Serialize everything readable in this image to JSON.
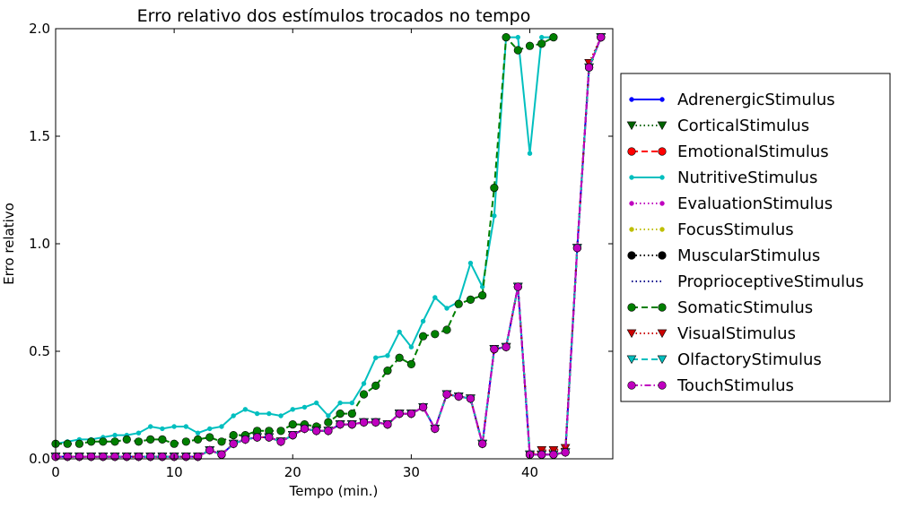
{
  "chart_data": {
    "type": "line",
    "title": "Erro relativo dos estímulos trocados no tempo",
    "xlabel": "Tempo (min.)",
    "ylabel": "Erro relativo",
    "xlim": [
      0,
      47
    ],
    "ylim": [
      0,
      2.0
    ],
    "xticks": [
      0,
      10,
      20,
      30,
      40
    ],
    "yticks": [
      0.0,
      0.5,
      1.0,
      1.5,
      2.0
    ],
    "xtick_labels": [
      "0",
      "10",
      "20",
      "30",
      "40"
    ],
    "ytick_labels": [
      "0.0",
      "0.5",
      "1.0",
      "1.5",
      "2.0"
    ],
    "grid": false,
    "legend_position": "right, outside plot",
    "x": [
      0,
      1,
      2,
      3,
      4,
      5,
      6,
      7,
      8,
      9,
      10,
      11,
      12,
      13,
      14,
      15,
      16,
      17,
      18,
      19,
      20,
      21,
      22,
      23,
      24,
      25,
      26,
      27,
      28,
      29,
      30,
      31,
      32,
      33,
      34,
      35,
      36,
      37,
      38,
      39,
      40,
      41,
      42,
      43,
      44,
      45,
      46
    ],
    "series": [
      {
        "name": "AdrenergicStimulus",
        "color": "#0000ff",
        "line": "solid",
        "marker": "dot",
        "values": [
          0.01,
          0.01,
          0.01,
          0.01,
          0.01,
          0.01,
          0.01,
          0.01,
          0.01,
          0.01,
          0.01,
          0.01,
          0.01,
          0.04,
          0.02,
          0.07,
          0.09,
          0.1,
          0.1,
          0.08,
          0.11,
          0.14,
          0.13,
          0.13,
          0.16,
          0.16,
          0.17,
          0.17,
          0.16,
          0.21,
          0.21,
          0.24,
          0.14,
          0.3,
          0.29,
          0.28,
          0.07,
          0.51,
          0.52,
          0.8,
          0.02,
          0.02,
          0.02,
          0.03,
          0.98,
          1.82,
          1.96
        ]
      },
      {
        "name": "CorticalStimulus",
        "color": "#006400",
        "line": "dotted",
        "marker": "triangle-down",
        "values": [
          0.01,
          0.01,
          0.01,
          0.01,
          0.01,
          0.01,
          0.01,
          0.01,
          0.01,
          0.01,
          0.01,
          0.01,
          0.01,
          0.04,
          0.02,
          0.07,
          0.09,
          0.1,
          0.1,
          0.08,
          0.11,
          0.14,
          0.13,
          0.13,
          0.16,
          0.16,
          0.17,
          0.17,
          0.16,
          0.21,
          0.21,
          0.24,
          0.14,
          0.3,
          0.29,
          0.28,
          0.07,
          0.51,
          0.52,
          0.8,
          0.02,
          0.02,
          0.02,
          0.03,
          0.98,
          1.82,
          1.96
        ]
      },
      {
        "name": "EmotionalStimulus",
        "color": "#ff0000",
        "line": "dashed",
        "marker": "circle",
        "values": [
          0.01,
          0.01,
          0.01,
          0.01,
          0.01,
          0.01,
          0.01,
          0.01,
          0.01,
          0.01,
          0.01,
          0.01,
          0.01,
          0.04,
          0.02,
          0.07,
          0.09,
          0.1,
          0.1,
          0.08,
          0.11,
          0.14,
          0.13,
          0.13,
          0.16,
          0.16,
          0.17,
          0.17,
          0.16,
          0.21,
          0.21,
          0.24,
          0.14,
          0.3,
          0.29,
          0.28,
          0.07,
          0.51,
          0.52,
          0.8,
          0.02,
          0.02,
          0.02,
          0.03,
          0.98,
          1.82,
          1.96
        ]
      },
      {
        "name": "NutritiveStimulus",
        "color": "#00bfbf",
        "line": "solid",
        "marker": "dot",
        "values": [
          0.07,
          0.08,
          0.09,
          0.09,
          0.1,
          0.11,
          0.11,
          0.12,
          0.15,
          0.14,
          0.15,
          0.15,
          0.12,
          0.14,
          0.15,
          0.2,
          0.23,
          0.21,
          0.21,
          0.2,
          0.23,
          0.24,
          0.26,
          0.2,
          0.26,
          0.26,
          0.35,
          0.47,
          0.48,
          0.59,
          0.52,
          0.64,
          0.75,
          0.7,
          0.73,
          0.91,
          0.8,
          1.13,
          1.96,
          1.96,
          1.42,
          1.96,
          1.96,
          null,
          null,
          null,
          null
        ]
      },
      {
        "name": "EvaluationStimulus",
        "color": "#bf00bf",
        "line": "dotted",
        "marker": "dot",
        "values": [
          0.01,
          0.01,
          0.01,
          0.01,
          0.01,
          0.01,
          0.01,
          0.01,
          0.01,
          0.01,
          0.01,
          0.01,
          0.01,
          0.04,
          0.02,
          0.07,
          0.09,
          0.1,
          0.1,
          0.08,
          0.11,
          0.14,
          0.13,
          0.13,
          0.16,
          0.16,
          0.17,
          0.17,
          0.16,
          0.21,
          0.21,
          0.24,
          0.14,
          0.3,
          0.29,
          0.28,
          0.07,
          0.51,
          0.52,
          0.8,
          0.02,
          0.02,
          0.02,
          0.03,
          0.98,
          1.82,
          1.96
        ]
      },
      {
        "name": "FocusStimulus",
        "color": "#bfbf00",
        "line": "dotted",
        "marker": "dot",
        "values": [
          0.01,
          0.01,
          0.01,
          0.01,
          0.01,
          0.01,
          0.01,
          0.01,
          0.01,
          0.01,
          0.01,
          0.01,
          0.01,
          0.04,
          0.02,
          0.07,
          0.09,
          0.1,
          0.1,
          0.08,
          0.11,
          0.14,
          0.13,
          0.13,
          0.16,
          0.16,
          0.17,
          0.17,
          0.16,
          0.21,
          0.21,
          0.24,
          0.14,
          0.3,
          0.29,
          0.28,
          0.07,
          0.51,
          0.52,
          0.8,
          0.02,
          0.02,
          0.02,
          0.03,
          0.98,
          1.82,
          1.96
        ]
      },
      {
        "name": "MuscularStimulus",
        "color": "#000000",
        "line": "dotted",
        "marker": "circle",
        "values": [
          0.01,
          0.01,
          0.01,
          0.01,
          0.01,
          0.01,
          0.01,
          0.01,
          0.01,
          0.01,
          0.01,
          0.01,
          0.01,
          0.04,
          0.02,
          0.07,
          0.09,
          0.1,
          0.1,
          0.08,
          0.11,
          0.14,
          0.13,
          0.13,
          0.16,
          0.16,
          0.17,
          0.17,
          0.16,
          0.21,
          0.21,
          0.24,
          0.14,
          0.3,
          0.29,
          0.28,
          0.07,
          0.51,
          0.52,
          0.8,
          0.02,
          0.02,
          0.02,
          0.03,
          0.98,
          1.82,
          1.96
        ]
      },
      {
        "name": "ProprioceptiveStimulus",
        "color": "#00008b",
        "line": "dotted",
        "marker": "none",
        "values": [
          0.01,
          0.01,
          0.01,
          0.01,
          0.01,
          0.01,
          0.01,
          0.01,
          0.01,
          0.01,
          0.01,
          0.01,
          0.01,
          0.04,
          0.02,
          0.07,
          0.09,
          0.1,
          0.1,
          0.08,
          0.11,
          0.14,
          0.13,
          0.13,
          0.16,
          0.16,
          0.17,
          0.17,
          0.16,
          0.21,
          0.21,
          0.24,
          0.14,
          0.3,
          0.29,
          0.28,
          0.07,
          0.51,
          0.52,
          0.8,
          0.02,
          0.02,
          0.02,
          0.03,
          0.98,
          1.82,
          1.96
        ]
      },
      {
        "name": "SomaticStimulus",
        "color": "#007f00",
        "line": "dashed",
        "marker": "circle",
        "values": [
          0.07,
          0.07,
          0.07,
          0.08,
          0.08,
          0.08,
          0.09,
          0.08,
          0.09,
          0.09,
          0.07,
          0.08,
          0.09,
          0.1,
          0.08,
          0.11,
          0.11,
          0.13,
          0.13,
          0.13,
          0.16,
          0.16,
          0.15,
          0.17,
          0.21,
          0.21,
          0.3,
          0.34,
          0.41,
          0.47,
          0.44,
          0.57,
          0.58,
          0.6,
          0.72,
          0.74,
          0.76,
          1.26,
          1.96,
          1.9,
          1.92,
          1.93,
          1.96,
          null,
          null,
          null,
          null
        ]
      },
      {
        "name": "VisualStimulus",
        "color": "#cc0000",
        "line": "dotted",
        "marker": "triangle-down",
        "values": [
          0.01,
          0.01,
          0.01,
          0.01,
          0.01,
          0.01,
          0.01,
          0.01,
          0.01,
          0.01,
          0.01,
          0.01,
          0.01,
          0.04,
          0.02,
          0.07,
          0.09,
          0.1,
          0.1,
          0.08,
          0.11,
          0.14,
          0.13,
          0.13,
          0.16,
          0.16,
          0.17,
          0.17,
          0.16,
          0.21,
          0.21,
          0.24,
          0.14,
          0.3,
          0.29,
          0.28,
          0.07,
          0.51,
          0.52,
          0.8,
          0.02,
          0.04,
          0.04,
          0.05,
          0.98,
          1.84,
          1.96
        ]
      },
      {
        "name": "OlfactoryStimulus",
        "color": "#00bfbf",
        "line": "dashed",
        "marker": "triangle-down",
        "values": [
          0.01,
          0.01,
          0.01,
          0.01,
          0.01,
          0.01,
          0.01,
          0.01,
          0.01,
          0.01,
          0.01,
          0.01,
          0.01,
          0.04,
          0.02,
          0.07,
          0.09,
          0.1,
          0.1,
          0.08,
          0.11,
          0.14,
          0.13,
          0.13,
          0.16,
          0.16,
          0.17,
          0.17,
          0.16,
          0.21,
          0.21,
          0.24,
          0.14,
          0.3,
          0.29,
          0.28,
          0.07,
          0.51,
          0.52,
          0.8,
          0.02,
          0.02,
          0.02,
          0.03,
          0.98,
          1.82,
          1.96
        ]
      },
      {
        "name": "TouchStimulus",
        "color": "#bf00bf",
        "line": "dashdot",
        "marker": "circle",
        "values": [
          0.01,
          0.01,
          0.01,
          0.01,
          0.01,
          0.01,
          0.01,
          0.01,
          0.01,
          0.01,
          0.01,
          0.01,
          0.01,
          0.04,
          0.02,
          0.07,
          0.09,
          0.1,
          0.1,
          0.08,
          0.11,
          0.14,
          0.13,
          0.13,
          0.16,
          0.16,
          0.17,
          0.17,
          0.16,
          0.21,
          0.21,
          0.24,
          0.14,
          0.3,
          0.29,
          0.28,
          0.07,
          0.51,
          0.52,
          0.8,
          0.02,
          0.02,
          0.02,
          0.03,
          0.98,
          1.82,
          1.96
        ]
      }
    ]
  }
}
